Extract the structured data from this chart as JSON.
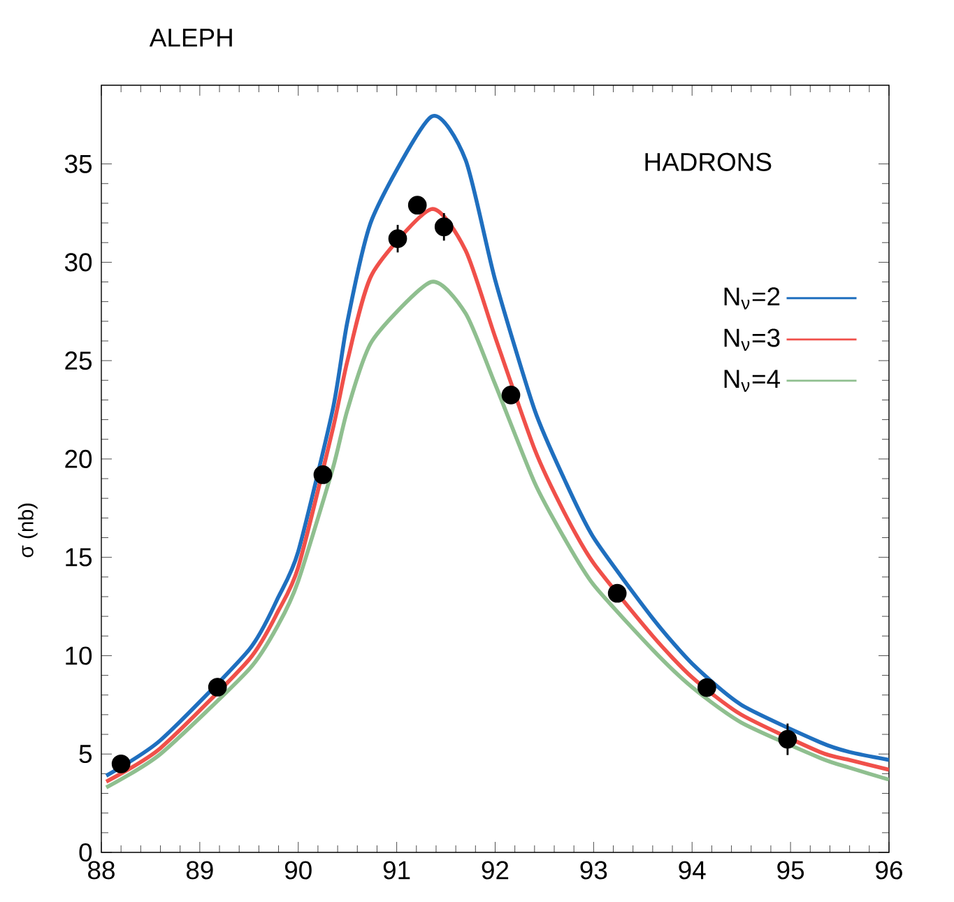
{
  "chart_data": {
    "type": "line",
    "title": "ALEPH",
    "ylabel": "σ (nb)",
    "annotations": [
      "HADRONS"
    ],
    "xlim": [
      88,
      96
    ],
    "ylim": [
      0,
      39
    ],
    "xticks": [
      88,
      89,
      90,
      91,
      92,
      93,
      94,
      95,
      96
    ],
    "yticks": [
      0,
      5,
      10,
      15,
      20,
      25,
      30,
      35
    ],
    "grid": false,
    "legend": "right",
    "series": [
      {
        "name": "N$_{ν}$=2",
        "color": "#1f6fbf",
        "x": [
          88.05,
          88.6,
          89.5,
          89.8,
          90.0,
          90.35,
          90.5,
          90.75,
          91.35,
          91.7,
          92.0,
          92.4,
          92.7,
          93.0,
          93.6,
          94.0,
          94.5,
          95.3,
          95.6,
          96.0
        ],
        "values": [
          3.9,
          5.7,
          10.3,
          13.0,
          15.3,
          22.5,
          27.0,
          32.2,
          37.4,
          35.2,
          29.1,
          22.5,
          19.0,
          16.0,
          11.9,
          9.6,
          7.5,
          5.6,
          5.1,
          4.7
        ]
      },
      {
        "name": "N$_{ν}$=3",
        "color": "#f0504a",
        "x": [
          88.05,
          88.6,
          89.5,
          89.8,
          90.0,
          90.35,
          90.5,
          90.75,
          91.35,
          91.7,
          92.0,
          92.4,
          92.7,
          93.0,
          93.6,
          94.0,
          94.5,
          95.3,
          95.6,
          96.0
        ],
        "values": [
          3.6,
          5.3,
          9.8,
          12.3,
          14.5,
          21.5,
          25.0,
          29.4,
          32.7,
          30.6,
          26.2,
          20.5,
          17.3,
          14.7,
          11.0,
          8.9,
          7.0,
          5.1,
          4.7,
          4.2
        ]
      },
      {
        "name": "N$_{ν}$=4",
        "color": "#8fbf8f",
        "x": [
          88.05,
          88.6,
          89.5,
          89.8,
          90.0,
          90.35,
          90.5,
          90.75,
          91.35,
          91.7,
          92.0,
          92.4,
          92.7,
          93.0,
          93.6,
          94.0,
          94.5,
          95.3,
          95.6,
          96.0
        ],
        "values": [
          3.3,
          5.0,
          9.3,
          11.6,
          13.8,
          19.5,
          22.5,
          26.0,
          29.0,
          27.4,
          23.8,
          18.8,
          16.0,
          13.6,
          10.3,
          8.4,
          6.6,
          4.8,
          4.3,
          3.7
        ]
      },
      {
        "color": "#000000",
        "type": "scatter",
        "marker": "circle",
        "x": [
          88.2,
          89.18,
          90.25,
          91.01,
          91.21,
          91.48,
          92.16,
          93.24,
          94.15,
          94.97
        ],
        "values": [
          4.5,
          8.4,
          19.2,
          31.2,
          32.9,
          31.8,
          23.25,
          13.17,
          8.38,
          5.75
        ],
        "errors": [
          0.3,
          0.3,
          0.4,
          0.7,
          0.4,
          0.7,
          0.4,
          0.3,
          0.3,
          0.8
        ]
      }
    ]
  }
}
